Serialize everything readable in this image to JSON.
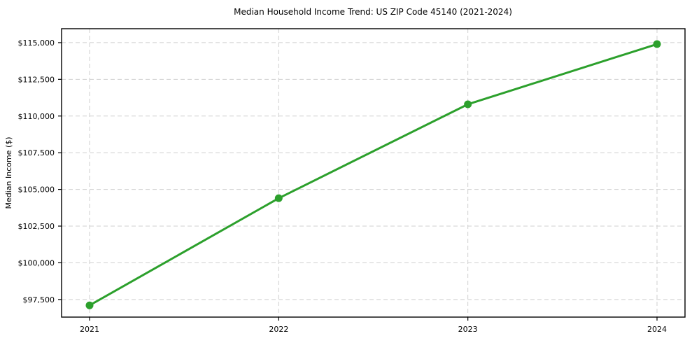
{
  "figure": {
    "background": "#ffffff"
  },
  "chart_data": {
    "type": "line",
    "title": "Median Household Income Trend: US ZIP Code 45140 (2021-2024)",
    "xlabel": "",
    "ylabel": "Median Income ($)",
    "x_labels": [
      "2021",
      "2022",
      "2023",
      "2024"
    ],
    "values": [
      97100,
      104400,
      110800,
      114900
    ],
    "y_ticks": [
      {
        "value": 97500,
        "label": "$97,500"
      },
      {
        "value": 100000,
        "label": "$100,000"
      },
      {
        "value": 102500,
        "label": "$102,500"
      },
      {
        "value": 105000,
        "label": "$105,000"
      },
      {
        "value": 107500,
        "label": "$107,500"
      },
      {
        "value": 110000,
        "label": "$110,000"
      },
      {
        "value": 112500,
        "label": "$112,500"
      },
      {
        "value": 115000,
        "label": "$115,000"
      }
    ],
    "ylim": [
      96300,
      115950
    ],
    "grid": true,
    "grid_style": "dashed",
    "legend_position": "none",
    "marker": "circle",
    "colors": {
      "line": "#2ca02c",
      "marker": "#2ca02c",
      "grid": "#cfcfcf",
      "axis": "#000000",
      "text": "#000000"
    }
  }
}
